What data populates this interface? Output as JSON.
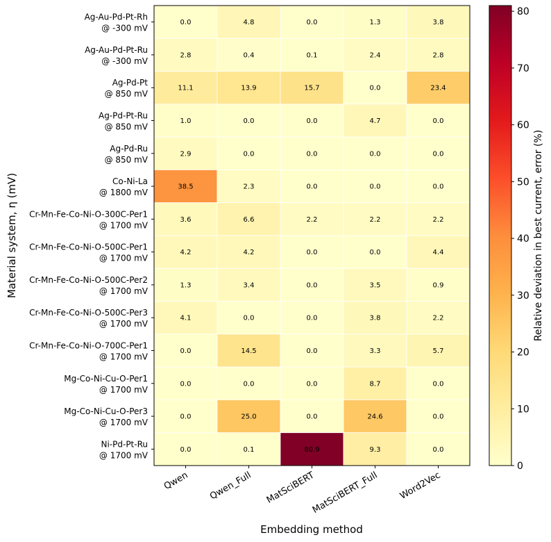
{
  "chart_data": {
    "type": "heatmap",
    "xlabel": "Embedding method",
    "ylabel": "Material system, η (mV)",
    "colorbar_label": "Relative deviation in best current, error (%)",
    "colorbar_ticks": [
      0,
      10,
      20,
      30,
      40,
      50,
      60,
      70,
      80
    ],
    "vmin": 0,
    "vmax": 81,
    "colormap": "YlOrRd",
    "columns": [
      "Qwen",
      "Qwen_Full",
      "MatSciBERT",
      "MatSciBERT_Full",
      "Word2Vec"
    ],
    "rows": [
      {
        "name": "Ag-Au-Pd-Pt-Rh",
        "potential": "@ -300 mV",
        "values": [
          0.0,
          4.8,
          0.0,
          1.3,
          3.8
        ]
      },
      {
        "name": "Ag-Au-Pd-Pt-Ru",
        "potential": "@ -300 mV",
        "values": [
          2.8,
          0.4,
          0.1,
          2.4,
          2.8
        ]
      },
      {
        "name": "Ag-Pd-Pt",
        "potential": "@ 850 mV",
        "values": [
          11.1,
          13.9,
          15.7,
          0.0,
          23.4
        ]
      },
      {
        "name": "Ag-Pd-Pt-Ru",
        "potential": "@ 850 mV",
        "values": [
          1.0,
          0.0,
          0.0,
          4.7,
          0.0
        ]
      },
      {
        "name": "Ag-Pd-Ru",
        "potential": "@ 850 mV",
        "values": [
          2.9,
          0.0,
          0.0,
          0.0,
          0.0
        ]
      },
      {
        "name": "Co-Ni-La",
        "potential": "@ 1800 mV",
        "values": [
          38.5,
          2.3,
          0.0,
          0.0,
          0.0
        ]
      },
      {
        "name": "Cr-Mn-Fe-Co-Ni-O-300C-Per1",
        "potential": "@ 1700 mV",
        "values": [
          3.6,
          6.6,
          2.2,
          2.2,
          2.2
        ]
      },
      {
        "name": "Cr-Mn-Fe-Co-Ni-O-500C-Per1",
        "potential": "@ 1700 mV",
        "values": [
          4.2,
          4.2,
          0.0,
          0.0,
          4.4
        ]
      },
      {
        "name": "Cr-Mn-Fe-Co-Ni-O-500C-Per2",
        "potential": "@ 1700 mV",
        "values": [
          1.3,
          3.4,
          0.0,
          3.5,
          0.9
        ]
      },
      {
        "name": "Cr-Mn-Fe-Co-Ni-O-500C-Per3",
        "potential": "@ 1700 mV",
        "values": [
          4.1,
          0.0,
          0.0,
          3.8,
          2.2
        ]
      },
      {
        "name": "Cr-Mn-Fe-Co-Ni-O-700C-Per1",
        "potential": "@ 1700 mV",
        "values": [
          0.0,
          14.5,
          0.0,
          3.3,
          5.7
        ]
      },
      {
        "name": "Mg-Co-Ni-Cu-O-Per1",
        "potential": "@ 1700 mV",
        "values": [
          0.0,
          0.0,
          0.0,
          8.7,
          0.0
        ]
      },
      {
        "name": "Mg-Co-Ni-Cu-O-Per3",
        "potential": "@ 1700 mV",
        "values": [
          0.0,
          25.0,
          0.0,
          24.6,
          0.0
        ]
      },
      {
        "name": "Ni-Pd-Pt-Ru",
        "potential": "@ 1700 mV",
        "values": [
          0.0,
          0.1,
          80.9,
          9.3,
          0.0
        ]
      }
    ]
  }
}
